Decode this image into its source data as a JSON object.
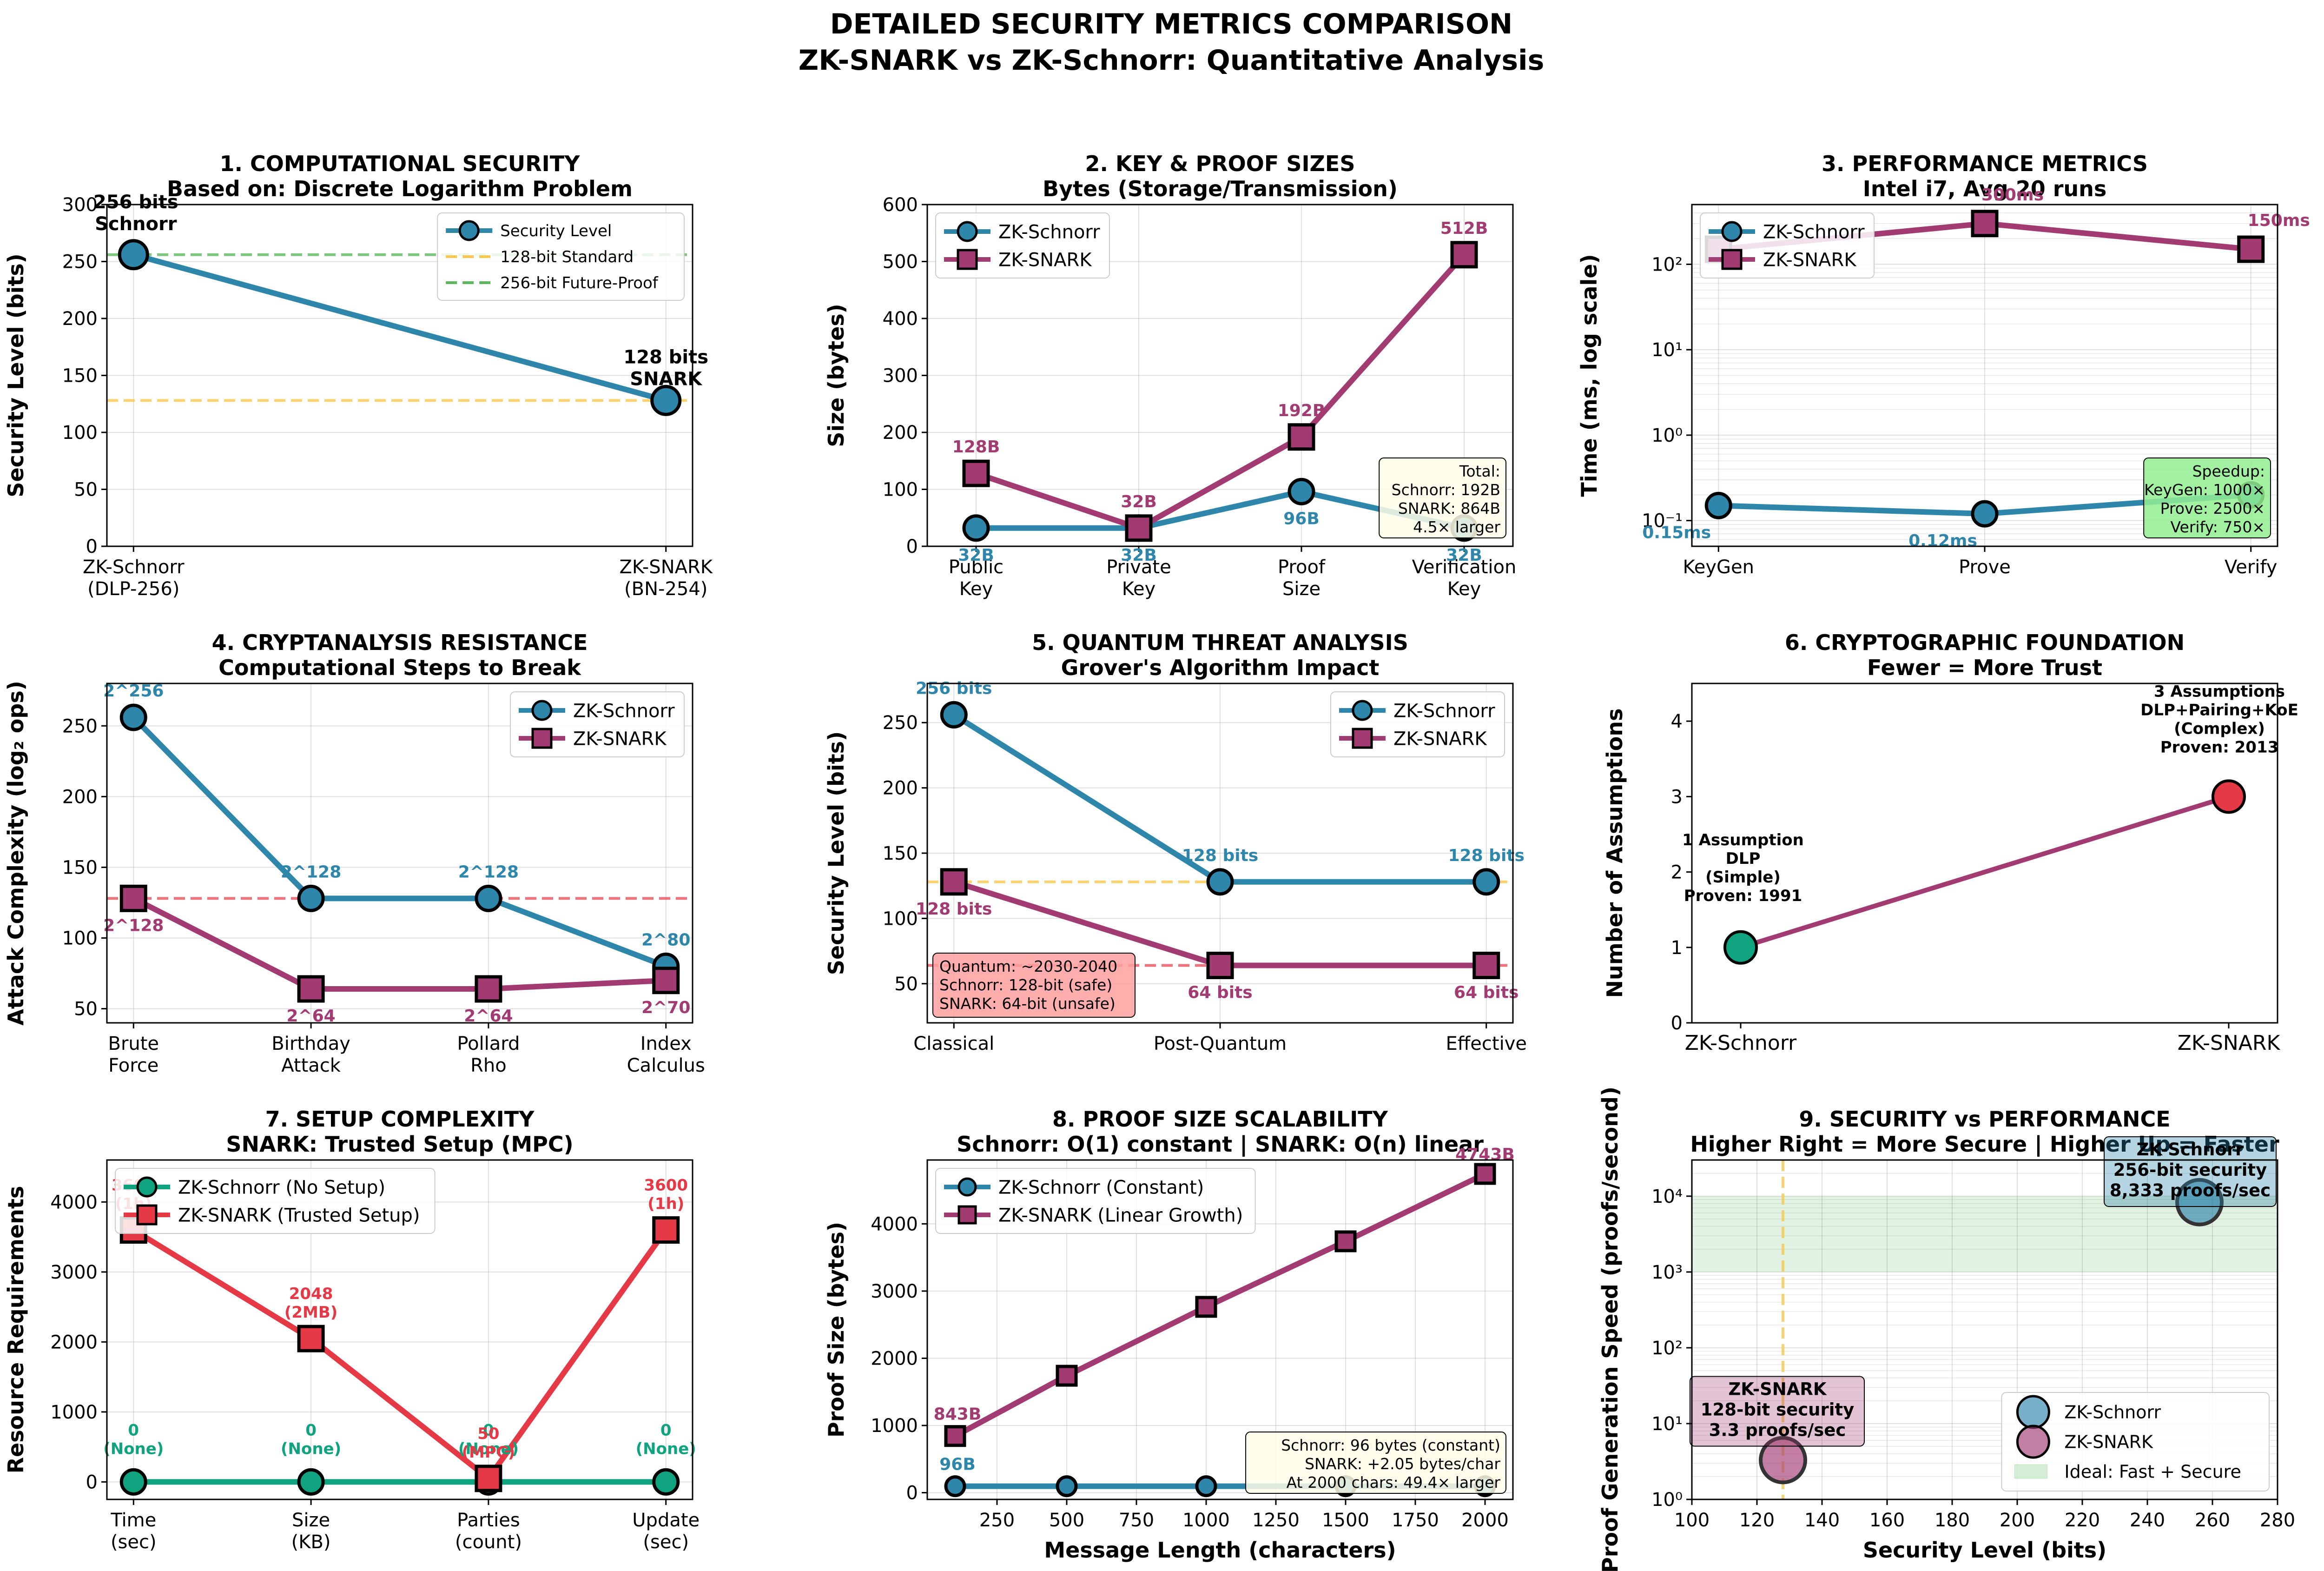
{
  "figure": {
    "title_line1": "DETAILED SECURITY METRICS COMPARISON",
    "title_line2": "ZK-SNARK vs ZK-Schnorr: Quantitative Analysis"
  },
  "colors": {
    "schnorr": "#2e86ab",
    "snark": "#a23b72",
    "green": "#0fa37f",
    "red": "#e63946",
    "orange": "#f9c74f",
    "softgreen": "#5cb85c"
  },
  "chart_data": [
    {
      "type": "line",
      "title": "1. COMPUTATIONAL SECURITY",
      "subtitle": "Based on: Discrete Logarithm Problem",
      "ylabel": "Security Level (bits)",
      "xlabel": "",
      "categories": [
        "ZK-Schnorr\n(DLP-256)",
        "ZK-SNARK\n(BN-254)"
      ],
      "ylim": [
        0,
        300
      ],
      "yticks": [
        0,
        50,
        100,
        150,
        200,
        250,
        300
      ],
      "series": [
        {
          "name": "Security Level",
          "values": [
            256,
            128
          ]
        }
      ],
      "reference_lines": [
        {
          "name": "128-bit Standard",
          "value": 128
        },
        {
          "name": "256-bit Future-Proof",
          "value": 256
        }
      ],
      "annotations": [
        "256 bits\nSchnorr",
        "128 bits\nSNARK"
      ],
      "legend": "top-right"
    },
    {
      "type": "line",
      "title": "2. KEY & PROOF SIZES",
      "subtitle": "Bytes (Storage/Transmission)",
      "ylabel": "Size (bytes)",
      "xlabel": "",
      "categories": [
        "Public\nKey",
        "Private\nKey",
        "Proof\nSize",
        "Verification\nKey"
      ],
      "ylim": [
        0,
        600
      ],
      "yticks": [
        0,
        100,
        200,
        300,
        400,
        500,
        600
      ],
      "series": [
        {
          "name": "ZK-Schnorr",
          "values": [
            32,
            32,
            96,
            32
          ],
          "labels": [
            "32B",
            "32B",
            "96B",
            "32B"
          ]
        },
        {
          "name": "ZK-SNARK",
          "values": [
            128,
            32,
            192,
            512
          ],
          "labels": [
            "128B",
            "32B",
            "192B",
            "512B"
          ]
        }
      ],
      "textbox": [
        "Total:",
        "Schnorr: 192B",
        "SNARK: 864B",
        "4.5× larger"
      ],
      "legend": "top-left"
    },
    {
      "type": "line",
      "title": "3. PERFORMANCE METRICS",
      "subtitle": "Intel i7, Avg 20 runs",
      "ylabel": "Time (ms, log scale)",
      "xlabel": "",
      "log_scale": true,
      "categories": [
        "KeyGen",
        "Prove",
        "Verify"
      ],
      "ylim": [
        0.05,
        500
      ],
      "yticks": [
        0.1,
        1,
        10,
        100
      ],
      "ytick_labels": [
        "10⁻¹",
        "10⁰",
        "10¹",
        "10²"
      ],
      "series": [
        {
          "name": "ZK-Schnorr",
          "values": [
            0.15,
            0.12,
            0.2
          ],
          "labels": [
            "0.15ms",
            "0.12ms",
            ""
          ]
        },
        {
          "name": "ZK-SNARK",
          "values": [
            150,
            300,
            150
          ],
          "labels": [
            "",
            "300ms",
            "150ms"
          ]
        }
      ],
      "textbox": [
        "Speedup:",
        "KeyGen: 1000×",
        "Prove: 2500×",
        "Verify: 750×"
      ],
      "legend": "top-left"
    },
    {
      "type": "line",
      "title": "4. CRYPTANALYSIS RESISTANCE",
      "subtitle": "Computational Steps to Break",
      "ylabel": "Attack Complexity (log₂ ops)",
      "xlabel": "",
      "categories": [
        "Brute\nForce",
        "Birthday\nAttack",
        "Pollard\nRho",
        "Index\nCalculus"
      ],
      "ylim": [
        40,
        280
      ],
      "yticks": [
        50,
        100,
        150,
        200,
        250
      ],
      "series": [
        {
          "name": "ZK-Schnorr",
          "values": [
            256,
            128,
            128,
            80
          ],
          "labels": [
            "2^256",
            "2^128",
            "2^128",
            "2^80"
          ]
        },
        {
          "name": "ZK-SNARK",
          "values": [
            128,
            64,
            64,
            70
          ],
          "labels": [
            "2^128",
            "2^64",
            "2^64",
            "2^70"
          ]
        }
      ],
      "reference_lines": [
        {
          "value": 128
        }
      ],
      "legend": "top-right"
    },
    {
      "type": "line",
      "title": "5. QUANTUM THREAT ANALYSIS",
      "subtitle": "Grover's Algorithm Impact",
      "ylabel": "Security Level (bits)",
      "xlabel": "",
      "categories": [
        "Classical",
        "Post-Quantum",
        "Effective"
      ],
      "ylim": [
        20,
        280
      ],
      "yticks": [
        50,
        100,
        150,
        200,
        250
      ],
      "series": [
        {
          "name": "ZK-Schnorr",
          "values": [
            256,
            128,
            128
          ],
          "labels": [
            "256 bits",
            "128 bits",
            "128 bits"
          ]
        },
        {
          "name": "ZK-SNARK",
          "values": [
            128,
            64,
            64
          ],
          "labels": [
            "128 bits",
            "64 bits",
            "64 bits"
          ]
        }
      ],
      "reference_lines": [
        {
          "value": 128
        },
        {
          "value": 64
        }
      ],
      "textbox": [
        "Quantum: ~2030-2040",
        "Schnorr: 128-bit (safe)",
        "SNARK: 64-bit (unsafe)"
      ],
      "legend": "top-right"
    },
    {
      "type": "line",
      "title": "6. CRYPTOGRAPHIC FOUNDATION",
      "subtitle": "Fewer = More Trust",
      "ylabel": "Number of Assumptions",
      "xlabel": "",
      "categories": [
        "ZK-Schnorr",
        "ZK-SNARK"
      ],
      "ylim": [
        0,
        4.5
      ],
      "yticks": [
        0,
        1,
        2,
        3,
        4
      ],
      "series": [
        {
          "name": "",
          "values": [
            1,
            3
          ]
        }
      ],
      "annotations": [
        "1 Assumption\nDLP\n(Simple)\nProven: 1991",
        "3 Assumptions\nDLP+Pairing+KoE\n(Complex)\nProven: 2013"
      ]
    },
    {
      "type": "line",
      "title": "7. SETUP COMPLEXITY",
      "subtitle": "SNARK: Trusted Setup (MPC)",
      "ylabel": "Resource Requirements",
      "xlabel": "",
      "categories": [
        "Time\n(sec)",
        "Size\n(KB)",
        "Parties\n(count)",
        "Update\n(sec)"
      ],
      "ylim": [
        -250,
        4600
      ],
      "yticks": [
        0,
        1000,
        2000,
        3000,
        4000
      ],
      "series": [
        {
          "name": "ZK-Schnorr (No Setup)",
          "values": [
            0,
            0,
            0,
            0
          ],
          "labels": [
            "0\n(None)",
            "0\n(None)",
            "0\n(None)",
            "0\n(None)"
          ]
        },
        {
          "name": "ZK-SNARK (Trusted Setup)",
          "values": [
            3600,
            2048,
            50,
            3600
          ],
          "labels": [
            "3600\n(1h)",
            "2048\n(2MB)",
            "50\n(MPC)",
            "3600\n(1h)"
          ]
        }
      ],
      "legend": "top-left"
    },
    {
      "type": "line",
      "title": "8. PROOF SIZE SCALABILITY",
      "subtitle": "Schnorr: O(1) constant | SNARK: O(n) linear",
      "ylabel": "Proof Size (bytes)",
      "xlabel": "Message Length (characters)",
      "x": [
        100,
        500,
        1000,
        1500,
        2000
      ],
      "xlim": [
        0,
        2100
      ],
      "xticks": [
        250,
        500,
        750,
        1000,
        1250,
        1500,
        1750,
        2000
      ],
      "ylim": [
        -100,
        4950
      ],
      "yticks": [
        0,
        1000,
        2000,
        3000,
        4000
      ],
      "series": [
        {
          "name": "ZK-Schnorr (Constant)",
          "values": [
            96,
            96,
            96,
            96,
            96
          ]
        },
        {
          "name": "ZK-SNARK (Linear Growth)",
          "values": [
            843,
            1740,
            2765,
            3740,
            4743
          ]
        }
      ],
      "annotations": [
        "96B",
        "843B",
        "4743B"
      ],
      "textbox": [
        "Schnorr: 96 bytes (constant)",
        "SNARK: +2.05 bytes/char",
        "At 2000 chars: 49.4× larger"
      ],
      "legend": "top-left"
    },
    {
      "type": "scatter",
      "title": "9. SECURITY vs PERFORMANCE",
      "subtitle": "Higher Right = More Secure | Higher Up = Faster",
      "ylabel": "Proof Generation Speed (proofs/second)",
      "xlabel": "Security Level (bits)",
      "log_scale": true,
      "xlim": [
        100,
        280
      ],
      "xticks": [
        100,
        120,
        140,
        160,
        180,
        200,
        220,
        240,
        260,
        280
      ],
      "ylim": [
        1,
        30000
      ],
      "yticks": [
        1,
        10,
        100,
        1000,
        10000
      ],
      "ytick_labels": [
        "10⁰",
        "10¹",
        "10²",
        "10³",
        "10⁴"
      ],
      "series": [
        {
          "name": "ZK-Schnorr",
          "x": [
            256
          ],
          "y": [
            8333
          ]
        },
        {
          "name": "ZK-SNARK",
          "x": [
            128
          ],
          "y": [
            3.3
          ]
        }
      ],
      "region": {
        "name": "Ideal: Fast + Secure",
        "y_from": 1000,
        "y_to": 10000
      },
      "reference_lines": [
        {
          "axis": "x",
          "value": 128
        }
      ],
      "annotations": [
        "ZK-Schnorr\n256-bit security\n8,333 proofs/sec",
        "ZK-SNARK\n128-bit security\n3.3 proofs/sec"
      ],
      "legend": "bottom-right"
    }
  ]
}
